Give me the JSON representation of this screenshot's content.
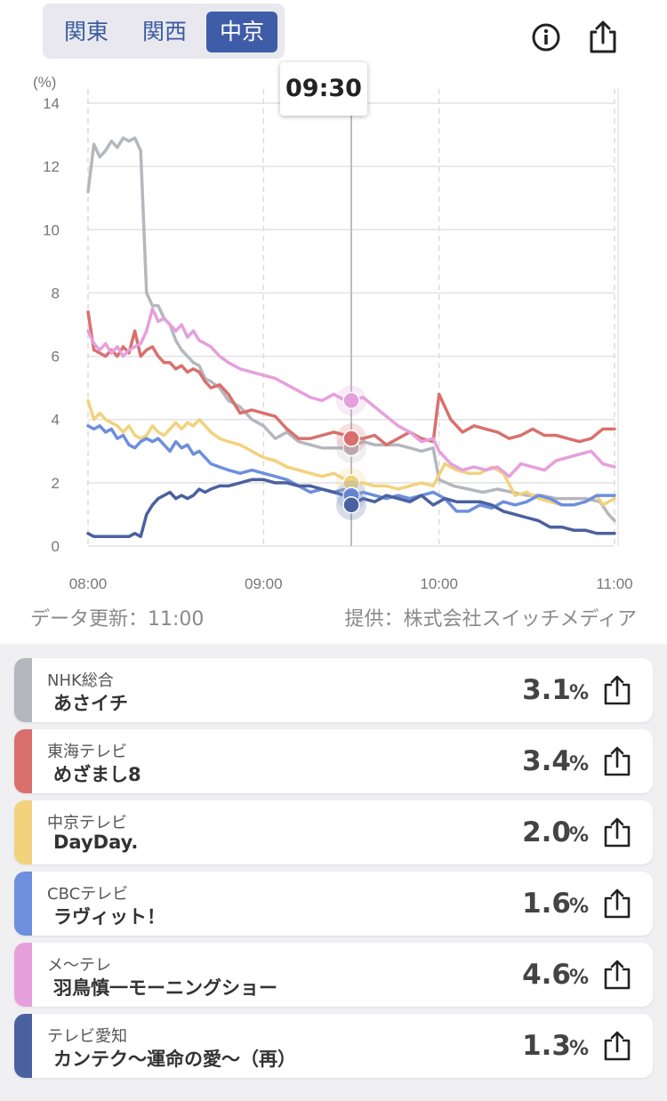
{
  "tabs": [
    {
      "label": "関東",
      "active": false
    },
    {
      "label": "関西",
      "active": false
    },
    {
      "label": "中京",
      "active": true
    }
  ],
  "header_icons": [
    "info-icon",
    "share-icon"
  ],
  "tooltip_time": "09:30",
  "footer": {
    "updated": "データ更新：11:00",
    "provider": "提供：株式会社スイッチメディア"
  },
  "chart_data": {
    "type": "line",
    "unit_label": "(%)",
    "y_ticks": [
      "0",
      "2",
      "4",
      "6",
      "8",
      "10",
      "12",
      "14"
    ],
    "ylim": [
      0,
      14
    ],
    "x_ticks": [
      "08:00",
      "09:00",
      "10:00",
      "11:00"
    ],
    "x_range_minutes": [
      0,
      180
    ],
    "marker_minute": 90,
    "grid": true,
    "series": [
      {
        "color": "#b4b8be",
        "x": [
          0,
          2,
          4,
          6,
          8,
          10,
          12,
          14,
          16,
          18,
          20,
          22,
          24,
          26,
          28,
          30,
          32,
          34,
          36,
          38,
          40,
          42,
          45,
          48,
          52,
          56,
          60,
          64,
          68,
          72,
          76,
          80,
          84,
          88,
          90,
          94,
          98,
          102,
          106,
          110,
          114,
          118,
          120,
          125,
          130,
          135,
          140,
          145,
          150,
          155,
          160,
          165,
          170,
          175,
          178,
          180
        ],
        "values": [
          11.2,
          12.7,
          12.3,
          12.5,
          12.8,
          12.6,
          12.9,
          12.8,
          12.9,
          12.5,
          8.0,
          7.6,
          7.6,
          7.2,
          7.0,
          6.5,
          6.2,
          6.0,
          5.8,
          5.7,
          5.3,
          5.2,
          5.0,
          4.6,
          4.4,
          4.0,
          3.8,
          3.4,
          3.6,
          3.3,
          3.2,
          3.1,
          3.1,
          3.1,
          3.1,
          3.3,
          3.2,
          3.2,
          3.2,
          3.1,
          3.0,
          3.1,
          2.1,
          1.9,
          1.8,
          1.7,
          1.8,
          1.7,
          1.6,
          1.6,
          1.5,
          1.5,
          1.5,
          1.4,
          1.0,
          0.8
        ]
      },
      {
        "color": "#d9706e",
        "x": [
          0,
          2,
          4,
          6,
          8,
          10,
          12,
          14,
          16,
          18,
          20,
          22,
          24,
          26,
          28,
          30,
          32,
          34,
          36,
          38,
          40,
          42,
          45,
          48,
          50,
          52,
          56,
          60,
          64,
          68,
          72,
          76,
          80,
          84,
          88,
          90,
          94,
          98,
          102,
          106,
          110,
          114,
          118,
          120,
          124,
          128,
          132,
          136,
          140,
          144,
          148,
          152,
          156,
          160,
          164,
          168,
          172,
          176,
          180
        ],
        "values": [
          7.4,
          6.2,
          6.1,
          6.0,
          6.2,
          6.0,
          6.3,
          6.1,
          6.8,
          6.0,
          6.2,
          6.3,
          6.0,
          5.8,
          5.8,
          5.6,
          5.7,
          5.5,
          5.6,
          5.5,
          5.2,
          5.0,
          5.1,
          4.8,
          4.5,
          4.2,
          4.3,
          4.2,
          4.1,
          3.7,
          3.4,
          3.4,
          3.5,
          3.6,
          3.5,
          3.4,
          3.4,
          3.5,
          3.2,
          3.4,
          3.6,
          3.4,
          3.3,
          4.8,
          4.0,
          3.6,
          3.8,
          3.7,
          3.6,
          3.4,
          3.5,
          3.7,
          3.5,
          3.5,
          3.4,
          3.3,
          3.4,
          3.7,
          3.7
        ]
      },
      {
        "color": "#f2d27c",
        "x": [
          0,
          2,
          4,
          6,
          8,
          10,
          12,
          14,
          16,
          18,
          20,
          22,
          24,
          26,
          28,
          30,
          32,
          34,
          36,
          38,
          40,
          42,
          45,
          48,
          52,
          56,
          60,
          64,
          68,
          72,
          76,
          80,
          84,
          88,
          90,
          94,
          98,
          102,
          106,
          110,
          114,
          118,
          122,
          126,
          130,
          134,
          138,
          142,
          146,
          150,
          154,
          158,
          162,
          166,
          170,
          174,
          176,
          180
        ],
        "values": [
          4.6,
          4.0,
          4.2,
          4.0,
          3.9,
          3.8,
          3.6,
          3.8,
          3.5,
          3.4,
          3.5,
          3.8,
          3.6,
          3.5,
          3.7,
          3.9,
          3.7,
          3.9,
          3.8,
          4.0,
          3.8,
          3.6,
          3.4,
          3.3,
          3.2,
          3.0,
          2.8,
          2.7,
          2.5,
          2.4,
          2.3,
          2.2,
          2.3,
          2.1,
          2.0,
          2.0,
          1.9,
          1.9,
          1.8,
          1.9,
          2.0,
          1.9,
          2.6,
          2.4,
          2.3,
          2.3,
          2.5,
          2.3,
          1.6,
          1.7,
          1.5,
          1.4,
          1.3,
          1.3,
          1.4,
          1.6,
          1.3,
          1.5
        ]
      },
      {
        "color": "#6d8fdd",
        "x": [
          0,
          2,
          4,
          6,
          8,
          10,
          12,
          14,
          16,
          18,
          20,
          22,
          24,
          26,
          28,
          30,
          32,
          34,
          36,
          38,
          40,
          42,
          45,
          48,
          52,
          56,
          60,
          64,
          68,
          72,
          76,
          80,
          84,
          88,
          90,
          94,
          98,
          102,
          106,
          110,
          114,
          118,
          122,
          126,
          130,
          134,
          138,
          142,
          146,
          150,
          154,
          158,
          162,
          166,
          170,
          174,
          178,
          180
        ],
        "values": [
          3.8,
          3.7,
          3.8,
          3.6,
          3.7,
          3.4,
          3.5,
          3.2,
          3.1,
          3.3,
          3.4,
          3.3,
          3.4,
          3.2,
          3.0,
          3.3,
          3.1,
          3.2,
          2.9,
          3.0,
          2.8,
          2.6,
          2.5,
          2.4,
          2.3,
          2.4,
          2.3,
          2.2,
          2.1,
          1.9,
          1.7,
          1.8,
          1.7,
          1.8,
          1.6,
          1.7,
          1.6,
          1.5,
          1.6,
          1.5,
          1.6,
          1.7,
          1.5,
          1.1,
          1.1,
          1.3,
          1.2,
          1.4,
          1.3,
          1.4,
          1.6,
          1.5,
          1.3,
          1.3,
          1.4,
          1.6,
          1.6,
          1.6
        ]
      },
      {
        "color": "#e5a0dc",
        "x": [
          0,
          2,
          4,
          6,
          8,
          10,
          12,
          14,
          16,
          18,
          20,
          22,
          24,
          26,
          28,
          30,
          32,
          34,
          36,
          38,
          40,
          42,
          45,
          48,
          52,
          56,
          60,
          64,
          68,
          72,
          76,
          80,
          84,
          88,
          90,
          94,
          98,
          102,
          106,
          110,
          114,
          118,
          120,
          124,
          128,
          132,
          136,
          140,
          144,
          148,
          152,
          156,
          160,
          164,
          168,
          172,
          176,
          180
        ],
        "values": [
          6.8,
          6.4,
          6.2,
          6.4,
          6.1,
          6.3,
          6.0,
          6.2,
          6.3,
          6.4,
          6.8,
          7.5,
          7.1,
          7.2,
          7.0,
          6.8,
          7.0,
          6.6,
          6.8,
          6.5,
          6.4,
          6.3,
          6.0,
          5.8,
          5.6,
          5.5,
          5.4,
          5.3,
          5.1,
          4.9,
          4.7,
          4.6,
          4.8,
          4.6,
          4.6,
          4.7,
          4.4,
          4.1,
          3.8,
          3.6,
          3.3,
          3.4,
          3.0,
          2.6,
          2.4,
          2.5,
          2.4,
          2.5,
          2.2,
          2.6,
          2.5,
          2.4,
          2.7,
          2.8,
          2.9,
          3.0,
          2.6,
          2.5
        ]
      },
      {
        "color": "#4b619f",
        "x": [
          0,
          2,
          4,
          6,
          8,
          10,
          12,
          14,
          16,
          18,
          20,
          22,
          24,
          26,
          28,
          30,
          32,
          34,
          36,
          38,
          40,
          42,
          45,
          48,
          52,
          56,
          60,
          64,
          68,
          72,
          76,
          80,
          84,
          88,
          90,
          94,
          98,
          102,
          106,
          110,
          114,
          118,
          122,
          126,
          130,
          134,
          138,
          142,
          146,
          150,
          154,
          158,
          162,
          166,
          170,
          174,
          178,
          180
        ],
        "values": [
          0.4,
          0.3,
          0.3,
          0.3,
          0.3,
          0.3,
          0.3,
          0.3,
          0.4,
          0.3,
          1.0,
          1.3,
          1.5,
          1.6,
          1.7,
          1.5,
          1.6,
          1.5,
          1.6,
          1.8,
          1.7,
          1.8,
          1.9,
          1.9,
          2.0,
          2.1,
          2.1,
          2.0,
          2.0,
          1.9,
          1.9,
          1.8,
          1.7,
          1.6,
          1.3,
          1.5,
          1.4,
          1.6,
          1.5,
          1.4,
          1.6,
          1.3,
          1.5,
          1.4,
          1.4,
          1.4,
          1.3,
          1.1,
          1.0,
          0.9,
          0.8,
          0.6,
          0.6,
          0.5,
          0.5,
          0.4,
          0.4,
          0.4
        ]
      }
    ]
  },
  "channels": [
    {
      "station": "NHK総合",
      "program": "あさイチ",
      "rate": "3.1",
      "pct": "%",
      "color": "#b4b8be"
    },
    {
      "station": "東海テレビ",
      "program": "めざまし8",
      "rate": "3.4",
      "pct": "%",
      "color": "#d9706e"
    },
    {
      "station": "中京テレビ",
      "program": "DayDay.",
      "rate": "2.0",
      "pct": "%",
      "color": "#f2d27c"
    },
    {
      "station": "CBCテレビ",
      "program": "ラヴィット！",
      "rate": "1.6",
      "pct": "%",
      "color": "#6d8fdd"
    },
    {
      "station": "メ〜テレ",
      "program": "羽鳥慎一モーニングショー",
      "rate": "4.6",
      "pct": "%",
      "color": "#e5a0dc"
    },
    {
      "station": "テレビ愛知",
      "program": "カンテク〜運命の愛〜（再）",
      "rate": "1.3",
      "pct": "%",
      "color": "#4b619f"
    }
  ]
}
